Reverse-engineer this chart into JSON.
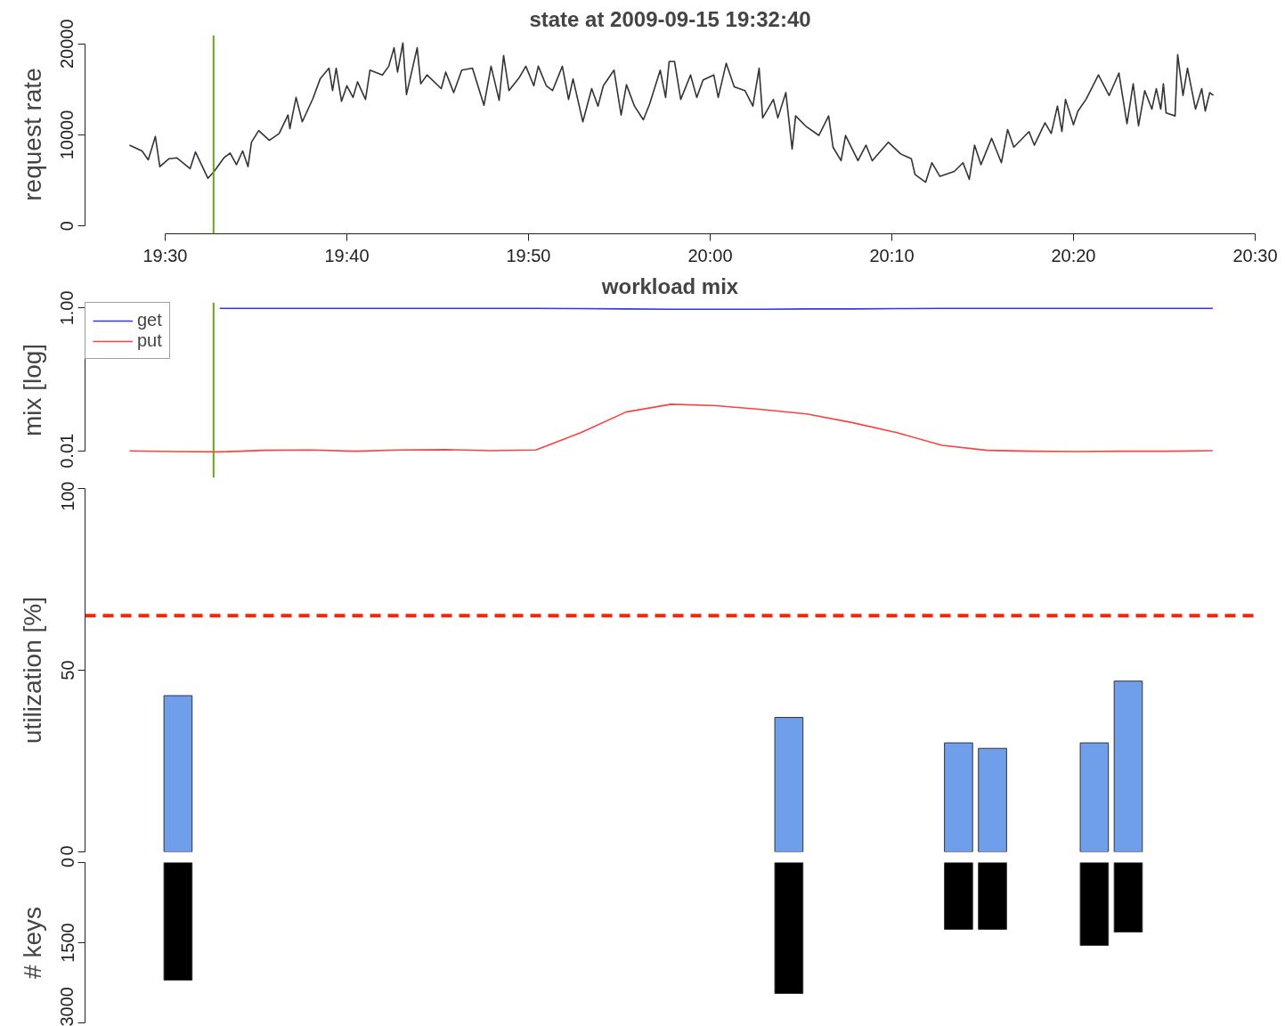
{
  "chart_data": [
    {
      "type": "line",
      "title": "state at 2009-09-15 19:32:40",
      "ylabel": "request rate",
      "x": [
        19.4673,
        19.4788,
        19.4845,
        19.491,
        19.4951,
        19.5033,
        19.5106,
        19.5229,
        19.5278,
        19.5392,
        19.5449,
        19.5539,
        19.5596,
        19.5654,
        19.5711,
        19.576,
        19.5792,
        19.5858,
        19.5956,
        19.6046,
        19.6127,
        19.6144,
        19.6201,
        19.6258,
        19.6356,
        19.6422,
        19.6503,
        19.6536,
        19.6569,
        19.6618,
        19.6667,
        19.6724,
        19.6765,
        19.6838,
        19.6879,
        19.6993,
        19.7051,
        19.71,
        19.7132,
        19.7181,
        19.7214,
        19.7312,
        19.7345,
        19.7402,
        19.7533,
        19.7574,
        19.7647,
        19.7721,
        19.7819,
        19.7925,
        19.799,
        19.8064,
        19.8105,
        19.8154,
        19.8252,
        19.8309,
        19.8382,
        19.8423,
        19.8497,
        19.8554,
        19.8644,
        19.8701,
        19.8742,
        19.8832,
        19.8913,
        19.8971,
        19.902,
        19.9118,
        19.9183,
        19.9232,
        19.9306,
        19.9387,
        19.9444,
        19.9542,
        19.9591,
        19.9624,
        19.9673,
        19.973,
        19.982,
        19.9877,
        19.9935,
        20.0033,
        20.0074,
        20.0147,
        20.0221,
        20.0319,
        20.0392,
        20.0449,
        20.0482,
        20.058,
        20.0621,
        20.0694,
        20.0752,
        20.0784,
        20.0882,
        20.0997,
        20.1087,
        20.1127,
        20.1201,
        20.1242,
        20.1356,
        20.143,
        20.1487,
        20.1634,
        20.1748,
        20.1846,
        20.1879,
        20.1977,
        20.2034,
        20.2108,
        20.2239,
        20.232,
        20.2377,
        20.2426,
        20.2484,
        20.2582,
        20.2672,
        20.2729,
        20.2786,
        20.2925,
        20.2974,
        20.3072,
        20.3129,
        20.3186,
        20.3227,
        20.326,
        20.3333,
        20.3374,
        20.3448,
        20.3562,
        20.366,
        20.375,
        20.3824,
        20.3881,
        20.393,
        20.3987,
        20.4052,
        20.4093,
        20.4134,
        20.4158,
        20.4183,
        20.4265,
        20.4289,
        20.4338,
        20.4379,
        20.4453,
        20.451,
        20.4542,
        20.4583,
        20.4616
      ],
      "series": [
        {
          "color": "#333333",
          "values": [
            8870,
            8240,
            7270,
            9840,
            6520,
            7380,
            7490,
            6300,
            8130,
            5240,
            5990,
            7490,
            8020,
            6740,
            8240,
            6520,
            9200,
            10480,
            9410,
            10160,
            12190,
            10700,
            14120,
            11440,
            14010,
            16150,
            17330,
            14870,
            17330,
            13690,
            15400,
            14120,
            15830,
            13900,
            17110,
            16580,
            17540,
            19570,
            16900,
            20100,
            14440,
            19570,
            15610,
            16580,
            15080,
            16900,
            14650,
            17110,
            17330,
            13260,
            17540,
            13800,
            18720,
            14870,
            16360,
            17540,
            15400,
            17540,
            15400,
            14870,
            17540,
            13900,
            16150,
            11440,
            15080,
            13160,
            15400,
            17110,
            12190,
            15510,
            13160,
            11660,
            13370,
            17110,
            14120,
            18070,
            18070,
            13900,
            16580,
            14120,
            16040,
            16580,
            14120,
            17860,
            15290,
            14870,
            13160,
            17330,
            11870,
            13900,
            11870,
            14650,
            8450,
            12090,
            10910,
            9950,
            12090,
            8660,
            7170,
            9950,
            7170,
            8880,
            7170,
            9200,
            7910,
            7380,
            5670,
            4810,
            6950,
            5450,
            5990,
            6950,
            5130,
            8880,
            6740,
            9630,
            6950,
            10590,
            8660,
            10370,
            8880,
            11340,
            10160,
            13160,
            10370,
            13900,
            11120,
            12620,
            13900,
            16580,
            14330,
            16790,
            11230,
            15610,
            11020,
            14870,
            12830,
            15080,
            12830,
            15610,
            12410,
            12090,
            18820,
            14330,
            17330,
            12830,
            15080,
            12620,
            14650,
            14330
          ]
        }
      ],
      "xlim": [
        19.4265,
        20.5
      ],
      "xticks": [
        {
          "value": 19.5,
          "label": "19:30"
        },
        {
          "value": 19.6667,
          "label": "19:40"
        },
        {
          "value": 19.8333,
          "label": "19:50"
        },
        {
          "value": 20.0,
          "label": "20:00"
        },
        {
          "value": 20.1667,
          "label": "20:10"
        },
        {
          "value": 20.3333,
          "label": "20:20"
        },
        {
          "value": 20.5,
          "label": "20:30"
        }
      ],
      "ylim": [
        -850,
        20950
      ],
      "yticks": [
        0,
        10000,
        20000
      ],
      "ref_lines": [
        {
          "axis": "x",
          "value": 19.5444,
          "color": "#6aa121"
        }
      ],
      "grid": false
    },
    {
      "type": "line",
      "title": "workload mix",
      "ylabel": "mix [log]",
      "log": true,
      "legend": "top left",
      "tick_labels": "y",
      "series": [
        {
          "name": "get",
          "color": "#3333ff",
          "values": [
            null,
            null,
            0.99,
            0.99,
            0.99,
            0.99,
            0.99,
            0.99,
            0.99,
            0.99,
            0.98,
            0.97,
            0.96,
            0.96,
            0.96,
            0.97,
            0.97,
            0.98,
            0.99,
            0.99,
            0.99,
            0.99,
            0.99,
            0.99,
            0.99
          ]
        },
        {
          "name": "put",
          "color": "#ff4040",
          "values": [
            0.01,
            0.0098,
            0.0097,
            0.0102,
            0.0103,
            0.0099,
            0.0103,
            0.0104,
            0.0101,
            0.0103,
            0.018,
            0.035,
            0.045,
            0.043,
            0.038,
            0.033,
            0.025,
            0.018,
            0.012,
            0.0102,
            0.0099,
            0.0098,
            0.0099,
            0.0099,
            0.0101
          ]
        }
      ],
      "categories": [
        null,
        null,
        null,
        null,
        null,
        null,
        null,
        null,
        null,
        null,
        null,
        null,
        null,
        null,
        null,
        null,
        null,
        null,
        null,
        null,
        null,
        null,
        null,
        null,
        null
      ],
      "ylim": [
        0.0042,
        1.2
      ],
      "yticks": [
        {
          "value": 0.01,
          "label": "0.01"
        },
        {
          "value": 1,
          "label": "1.00"
        }
      ],
      "grid": false
    },
    {
      "type": "bar",
      "ylabel": "utilization [%]",
      "tick_labels": "y",
      "categories": [
        null,
        null,
        null,
        null,
        null,
        null,
        null,
        null,
        null,
        null,
        null,
        null,
        null,
        null,
        null,
        null,
        null,
        null,
        null,
        null,
        null,
        null,
        null,
        null,
        null,
        null,
        null,
        null,
        null,
        null,
        null,
        null,
        null,
        null
      ],
      "series": [
        {
          "color": "#6f9fea",
          "values": [
            null,
            null,
            43,
            null,
            null,
            null,
            null,
            null,
            null,
            null,
            null,
            null,
            null,
            null,
            null,
            null,
            null,
            null,
            null,
            null,
            37,
            null,
            null,
            null,
            null,
            30,
            28.5,
            null,
            null,
            30,
            47,
            null,
            null,
            null
          ]
        }
      ],
      "ylim": [
        0,
        100
      ],
      "yticks": [
        0,
        50,
        100
      ],
      "ref_lines": [
        {
          "axis": "y",
          "value": 65,
          "color": "#ff2200",
          "line_style": "dashed"
        }
      ],
      "grid": false
    },
    {
      "type": "bar",
      "ylabel": "# keys",
      "tick_labels": "y",
      "categories": [
        null,
        null,
        null,
        null,
        null,
        null,
        null,
        null,
        null,
        null,
        null,
        null,
        null,
        null,
        null,
        null,
        null,
        null,
        null,
        null,
        null,
        null,
        null,
        null,
        null,
        null,
        null,
        null,
        null,
        null,
        null,
        null,
        null,
        null
      ],
      "series": [
        {
          "color": "#000000",
          "values": [
            null,
            null,
            2200,
            null,
            null,
            null,
            null,
            null,
            null,
            null,
            null,
            null,
            null,
            null,
            null,
            null,
            null,
            null,
            null,
            null,
            2450,
            null,
            null,
            null,
            null,
            1250,
            1250,
            null,
            null,
            1550,
            1300,
            null,
            null,
            null
          ]
        }
      ],
      "ylim": [
        3000,
        0
      ],
      "yticks": [
        0,
        1500,
        3000
      ],
      "grid": false
    }
  ]
}
